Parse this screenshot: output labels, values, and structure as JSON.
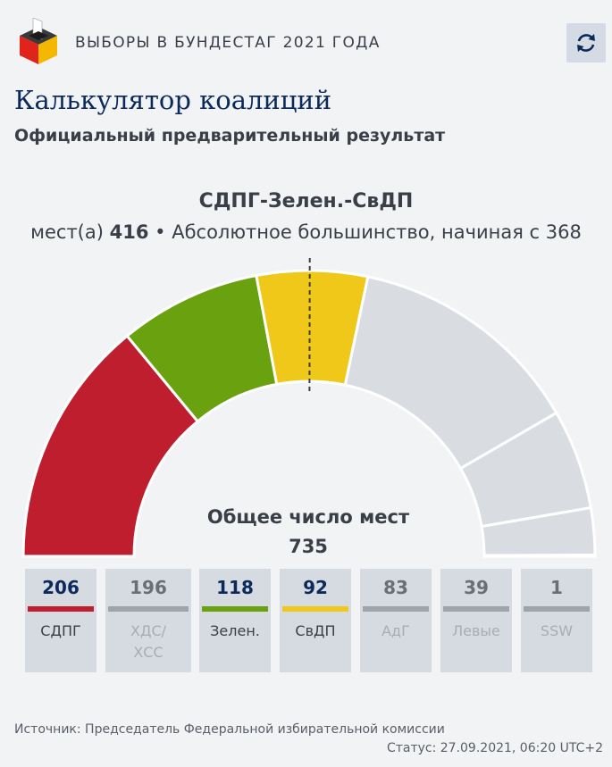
{
  "header": {
    "title": "ВЫБОРЫ В БУНДЕСТАГ 2021 ГОДА",
    "logo_icon": "ballot-box-icon",
    "refresh_icon": "refresh-icon"
  },
  "page": {
    "title": "Калькулятор коалиций",
    "subtitle": "Официальный предварительный результат"
  },
  "coalition": {
    "name": "СДПГ-Зелен.-СвДП",
    "seats_prefix": "мест(а)",
    "seats": "416",
    "majority_text": "• Абсолютное большинство, начиная с 368"
  },
  "chart_data": {
    "type": "semicircle",
    "total_label": "Общее число мест",
    "total": 735,
    "majority": 368,
    "series": [
      {
        "name": "СДПГ",
        "value": 206,
        "color": "#be1e2d",
        "selected": true
      },
      {
        "name": "Зелен.",
        "value": 118,
        "color": "#6aa10e",
        "selected": true
      },
      {
        "name": "СвДП",
        "value": 92,
        "color": "#f0c819",
        "selected": true
      },
      {
        "name": "ХДС/ ХСС",
        "value": 196,
        "color": "#d9dde2",
        "selected": false
      },
      {
        "name": "АдГ",
        "value": 83,
        "color": "#d9dde2",
        "selected": false
      },
      {
        "name": "Левые",
        "value": 39,
        "color": "#d9dde2",
        "selected": false
      },
      {
        "name": "SSW",
        "value": 1,
        "color": "#d9dde2",
        "selected": false
      }
    ]
  },
  "parties": [
    {
      "seats": "206",
      "name": "СДПГ",
      "color": "#be1e2d",
      "selected": true
    },
    {
      "seats": "196",
      "name": "ХДС/\nХСС",
      "color": "#9ea4ab",
      "selected": false
    },
    {
      "seats": "118",
      "name": "Зелен.",
      "color": "#6aa10e",
      "selected": true
    },
    {
      "seats": "92",
      "name": "СвДП",
      "color": "#f0c819",
      "selected": true
    },
    {
      "seats": "83",
      "name": "АдГ",
      "color": "#9ea4ab",
      "selected": false
    },
    {
      "seats": "39",
      "name": "Левые",
      "color": "#9ea4ab",
      "selected": false
    },
    {
      "seats": "1",
      "name": "SSW",
      "color": "#9ea4ab",
      "selected": false
    }
  ],
  "footer": {
    "source": "Источник: Председатель Федеральной избирательной комиссии",
    "status": "Статус: 27.09.2021, 06:20 UTC+2"
  }
}
